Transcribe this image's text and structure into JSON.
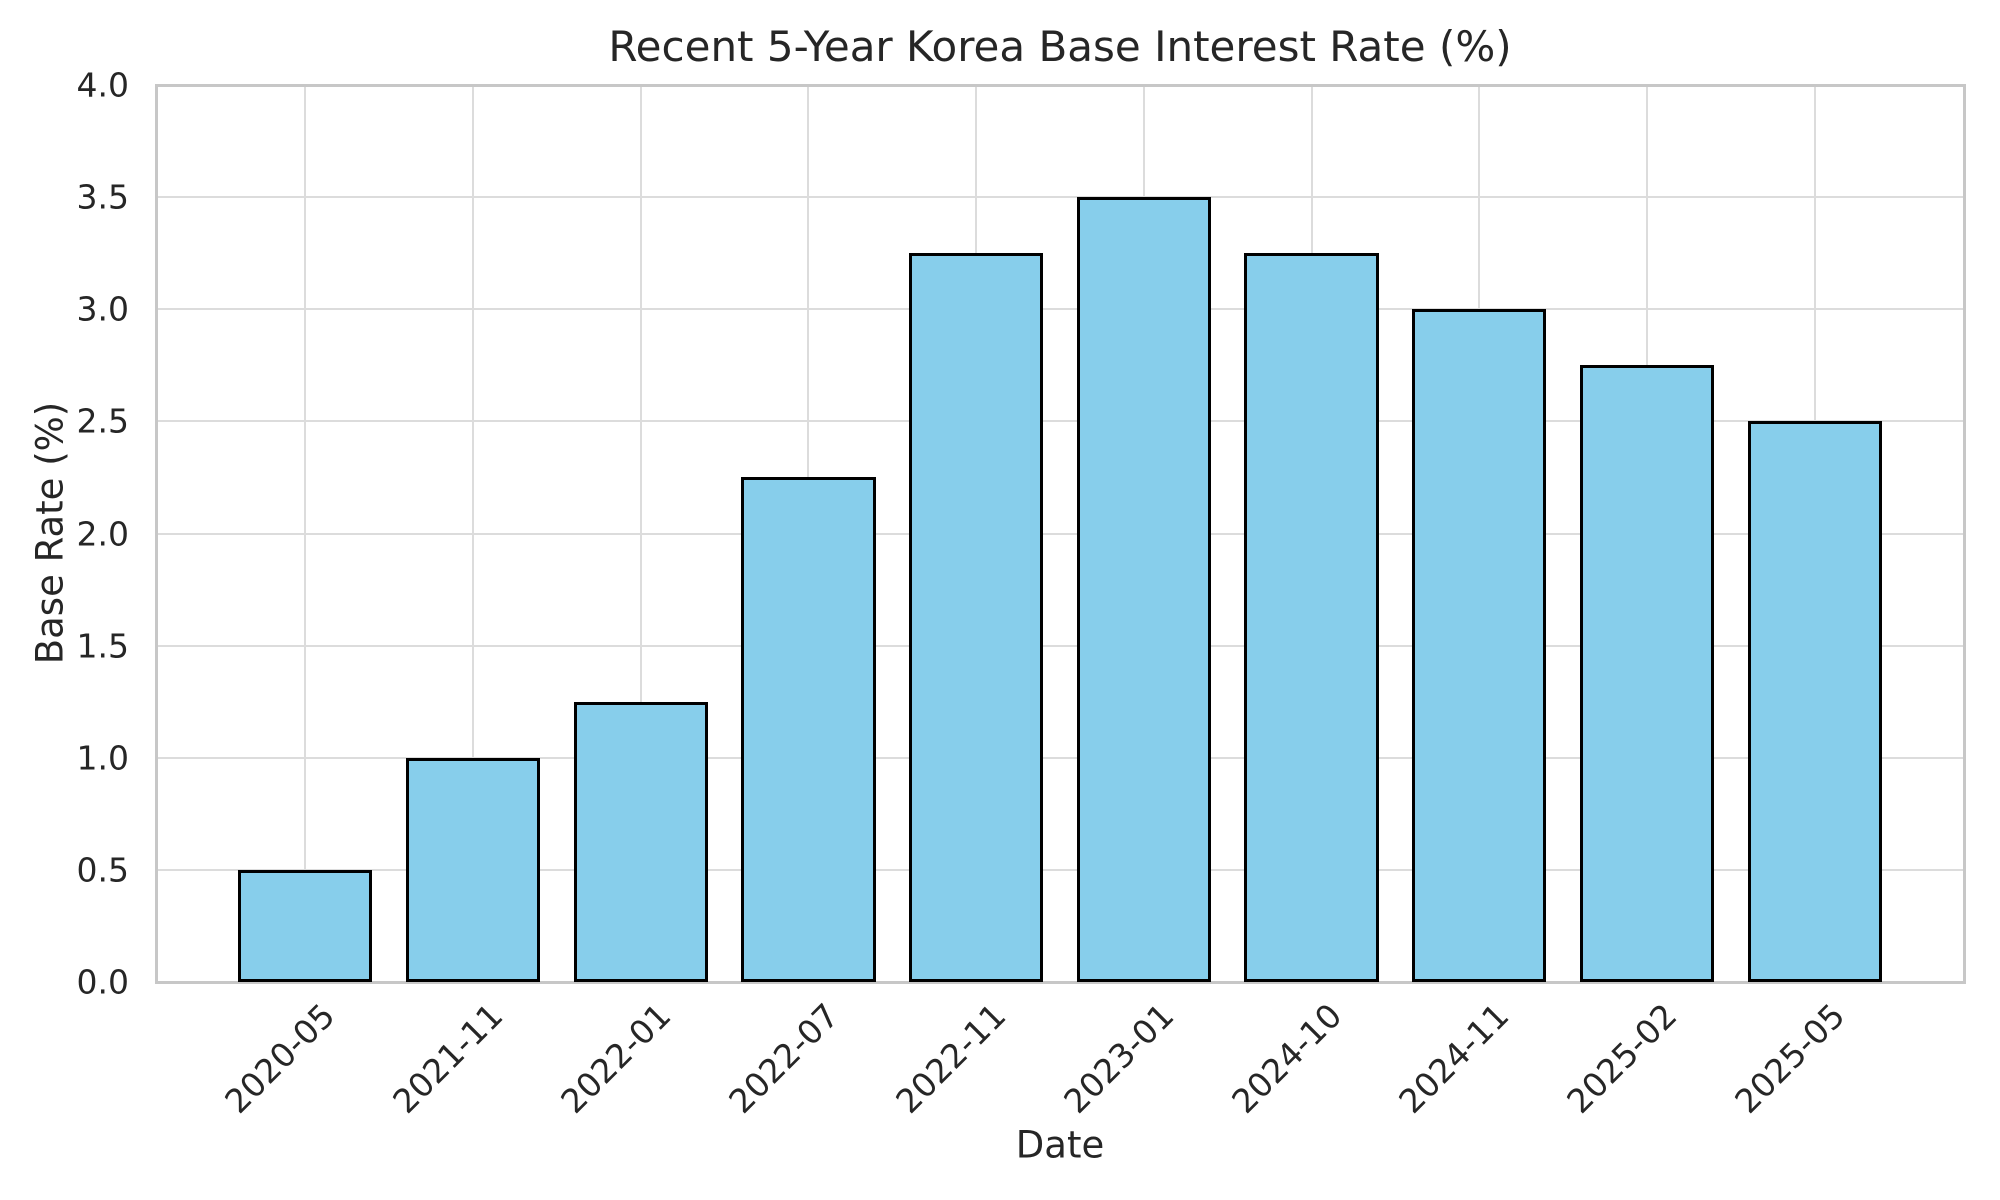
{
  "chart_data": {
    "type": "bar",
    "title": "Recent 5-Year Korea Base Interest Rate (%)",
    "xlabel": "Date",
    "ylabel": "Base Rate (%)",
    "categories": [
      "2020-05",
      "2021-11",
      "2022-01",
      "2022-07",
      "2022-11",
      "2023-01",
      "2024-10",
      "2024-11",
      "2025-02",
      "2025-05"
    ],
    "values": [
      0.5,
      1.0,
      1.25,
      2.25,
      3.25,
      3.5,
      3.25,
      3.0,
      2.75,
      2.5
    ],
    "ylim": [
      0,
      4
    ],
    "yticks": [
      0.0,
      0.5,
      1.0,
      1.5,
      2.0,
      2.5,
      3.0,
      3.5,
      4.0
    ],
    "ytick_labels": [
      "0.0",
      "0.5",
      "1.0",
      "1.5",
      "2.0",
      "2.5",
      "3.0",
      "3.5",
      "4.0"
    ],
    "x_tick_rotation_deg": 45,
    "grid": true,
    "legend_position": "none",
    "bar_width_fraction": 0.8,
    "colors": {
      "bar_fill": "#87CEEB",
      "bar_edge": "#000000",
      "grid_line": "#dcdcdc",
      "spine": "#c7c7c7",
      "text": "#262626",
      "background": "#ffffff"
    }
  }
}
